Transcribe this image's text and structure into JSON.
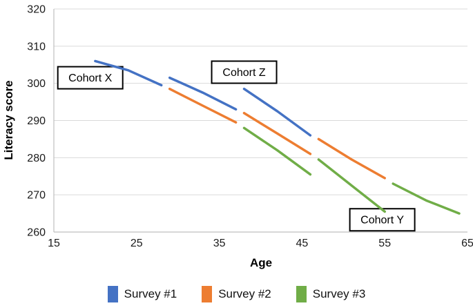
{
  "chart_data": {
    "type": "line",
    "title": "",
    "xlabel": "Age",
    "ylabel": "Literacy score",
    "xlim": [
      15,
      65
    ],
    "ylim": [
      260,
      320
    ],
    "xticks": [
      15,
      25,
      35,
      45,
      55,
      65
    ],
    "yticks": [
      260,
      270,
      280,
      290,
      300,
      310,
      320
    ],
    "grid": "horizontal",
    "legend_position": "bottom",
    "colors": {
      "survey1": "#4472C4",
      "survey2": "#ED7D31",
      "survey3": "#70AD47",
      "gridline": "#D9D9D9",
      "axis_line": "#BFBFBF",
      "text": "#1a1a1a",
      "annotation_border": "#000000",
      "annotation_fill": "#ffffff"
    },
    "series": [
      {
        "name": "Survey #1",
        "color": "#4472C4",
        "segments": [
          {
            "cohort": "Cohort X",
            "points": [
              [
                20,
                306
              ],
              [
                24,
                303.5
              ],
              [
                28,
                299.5
              ]
            ]
          },
          {
            "cohort": "Cohort Y",
            "points": [
              [
                29,
                301.5
              ],
              [
                33,
                297.5
              ],
              [
                37,
                293
              ]
            ]
          },
          {
            "cohort": "Cohort Z",
            "points": [
              [
                38,
                298.5
              ],
              [
                42,
                292.5
              ],
              [
                46,
                286
              ]
            ]
          }
        ]
      },
      {
        "name": "Survey #2",
        "color": "#ED7D31",
        "segments": [
          {
            "cohort": "Cohort X",
            "points": [
              [
                29,
                298.5
              ],
              [
                33,
                294
              ],
              [
                37,
                289.5
              ]
            ]
          },
          {
            "cohort": "Cohort Y",
            "points": [
              [
                38,
                292
              ],
              [
                42,
                286.5
              ],
              [
                46,
                281
              ]
            ]
          },
          {
            "cohort": "Cohort Z",
            "points": [
              [
                47,
                285
              ],
              [
                51,
                279.5
              ],
              [
                55,
                274.5
              ]
            ]
          }
        ]
      },
      {
        "name": "Survey #3",
        "color": "#70AD47",
        "segments": [
          {
            "cohort": "Cohort X",
            "points": [
              [
                38,
                288
              ],
              [
                42,
                282
              ],
              [
                46,
                275.5
              ]
            ]
          },
          {
            "cohort": "Cohort Y",
            "points": [
              [
                47,
                279.5
              ],
              [
                51,
                272.5
              ],
              [
                55,
                265.5
              ]
            ]
          },
          {
            "cohort": "Cohort Z",
            "points": [
              [
                56,
                273
              ],
              [
                60,
                268.5
              ],
              [
                64,
                265
              ]
            ]
          }
        ]
      }
    ],
    "annotations": [
      {
        "label": "Cohort X",
        "age": 19.4,
        "score": 301.5
      },
      {
        "label": "Cohort Z",
        "age": 38.0,
        "score": 303.0
      },
      {
        "label": "Cohort Y",
        "age": 54.7,
        "score": 263.3
      }
    ]
  }
}
